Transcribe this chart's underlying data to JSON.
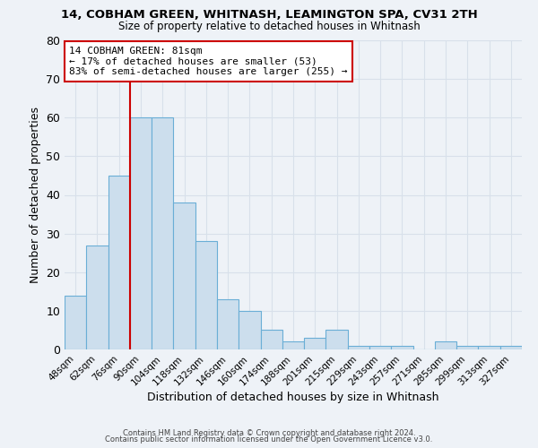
{
  "title_line1": "14, COBHAM GREEN, WHITNASH, LEAMINGTON SPA, CV31 2TH",
  "title_line2": "Size of property relative to detached houses in Whitnash",
  "xlabel": "Distribution of detached houses by size in Whitnash",
  "ylabel": "Number of detached properties",
  "bin_labels": [
    "48sqm",
    "62sqm",
    "76sqm",
    "90sqm",
    "104sqm",
    "118sqm",
    "132sqm",
    "146sqm",
    "160sqm",
    "174sqm",
    "188sqm",
    "201sqm",
    "215sqm",
    "229sqm",
    "243sqm",
    "257sqm",
    "271sqm",
    "285sqm",
    "299sqm",
    "313sqm",
    "327sqm"
  ],
  "bar_heights": [
    14,
    27,
    45,
    60,
    60,
    38,
    28,
    13,
    10,
    5,
    2,
    3,
    5,
    1,
    1,
    1,
    0,
    2,
    1,
    1,
    1
  ],
  "bar_color": "#ccdeed",
  "bar_edge_color": "#6aaed6",
  "vline_index": 3,
  "vline_color": "#cc0000",
  "ylim": [
    0,
    80
  ],
  "yticks": [
    0,
    10,
    20,
    30,
    40,
    50,
    60,
    70,
    80
  ],
  "annotation_title": "14 COBHAM GREEN: 81sqm",
  "annotation_line1": "← 17% of detached houses are smaller (53)",
  "annotation_line2": "83% of semi-detached houses are larger (255) →",
  "annotation_box_color": "#ffffff",
  "annotation_box_edge": "#cc0000",
  "footer_line1": "Contains HM Land Registry data © Crown copyright and database right 2024.",
  "footer_line2": "Contains public sector information licensed under the Open Government Licence v3.0.",
  "background_color": "#eef2f7",
  "grid_color": "#d8e0ea"
}
